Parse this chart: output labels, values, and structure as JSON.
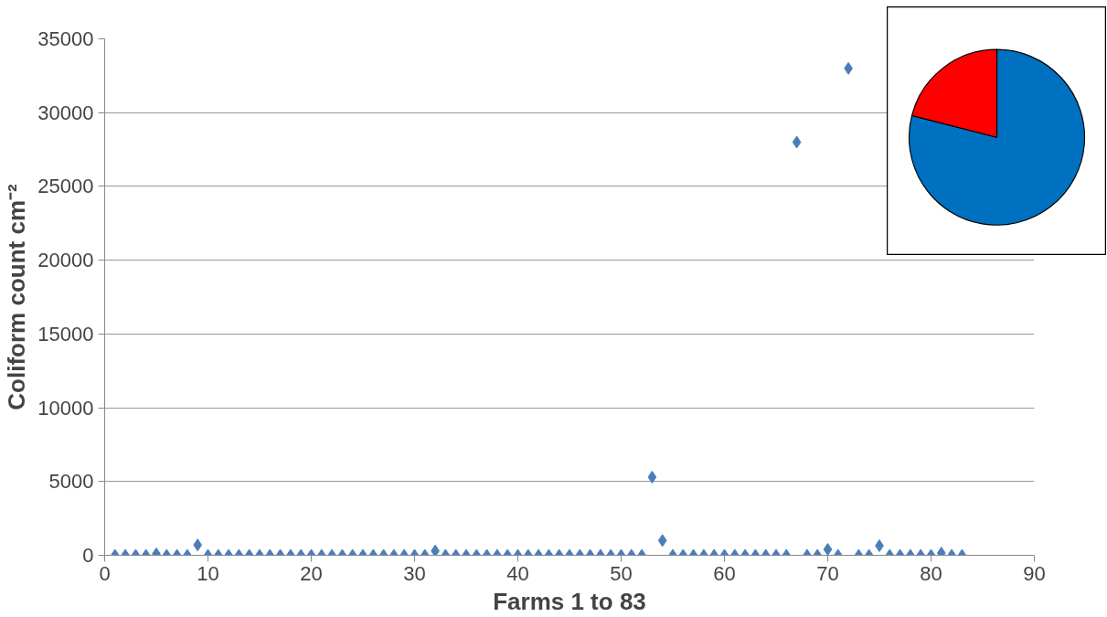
{
  "chart_data": [
    {
      "type": "scatter",
      "xlabel": "Farms 1 to 83",
      "ylabel": "Coliform count cm⁻²",
      "marker": "diamond",
      "grid": "y",
      "xlim": [
        0,
        90
      ],
      "ylim": [
        0,
        35000
      ],
      "xticks": [
        0,
        10,
        20,
        30,
        40,
        50,
        60,
        70,
        80,
        90
      ],
      "yticks": [
        0,
        5000,
        10000,
        15000,
        20000,
        25000,
        30000,
        35000
      ],
      "x": [
        1,
        2,
        3,
        4,
        5,
        6,
        7,
        8,
        9,
        10,
        11,
        12,
        13,
        14,
        15,
        16,
        17,
        18,
        19,
        20,
        21,
        22,
        23,
        24,
        25,
        26,
        27,
        28,
        29,
        30,
        31,
        32,
        33,
        34,
        35,
        36,
        37,
        38,
        39,
        40,
        41,
        42,
        43,
        44,
        45,
        46,
        47,
        48,
        49,
        50,
        51,
        52,
        53,
        54,
        55,
        56,
        57,
        58,
        59,
        60,
        61,
        62,
        63,
        64,
        65,
        66,
        67,
        68,
        69,
        70,
        71,
        72,
        73,
        74,
        75,
        76,
        77,
        78,
        79,
        80,
        81,
        82,
        83
      ],
      "series": [
        {
          "color": "#4a7ebb",
          "values": [
            0,
            0,
            0,
            0,
            100,
            0,
            0,
            0,
            700,
            0,
            0,
            0,
            0,
            0,
            0,
            0,
            0,
            0,
            0,
            0,
            0,
            0,
            0,
            0,
            0,
            0,
            0,
            0,
            0,
            0,
            0,
            300,
            0,
            0,
            0,
            0,
            0,
            0,
            0,
            0,
            0,
            0,
            0,
            0,
            0,
            0,
            0,
            0,
            0,
            0,
            0,
            0,
            5300,
            1000,
            0,
            0,
            0,
            0,
            0,
            0,
            0,
            0,
            0,
            0,
            0,
            0,
            28000,
            0,
            0,
            400,
            0,
            33000,
            0,
            0,
            650,
            0,
            0,
            0,
            0,
            0,
            150,
            0,
            0
          ]
        }
      ]
    },
    {
      "type": "pie",
      "categories": [
        null,
        null
      ],
      "values": [
        79,
        21
      ],
      "colors": [
        "#0070c0",
        "#ff0000"
      ]
    }
  ]
}
